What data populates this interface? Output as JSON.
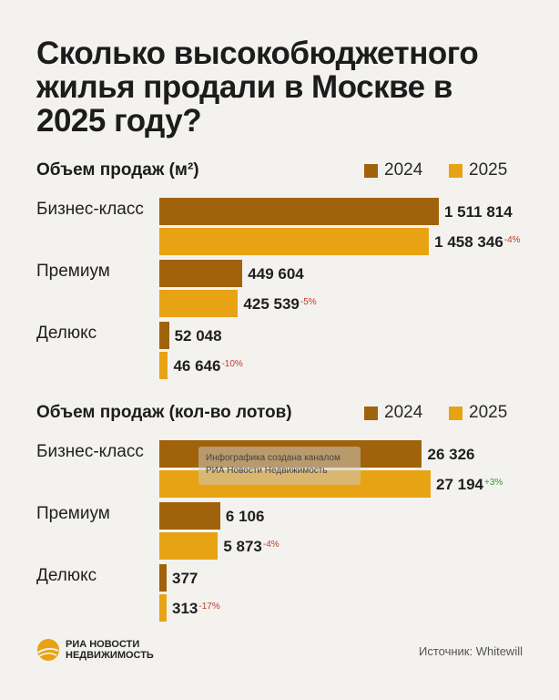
{
  "title": "Сколько высокобюджетного жилья продали в Москве в 2025 году?",
  "colors": {
    "y2024": "#a0620a",
    "y2025": "#e8a314",
    "negative": "#c23a2c",
    "positive": "#2e9a3a"
  },
  "legend": {
    "year_2024": "2024",
    "year_2025": "2025"
  },
  "chart_data": [
    {
      "type": "bar",
      "title": "Объем продаж (м²)",
      "categories": [
        "Бизнес-класс",
        "Премиум",
        "Делюкс"
      ],
      "series": [
        {
          "name": "2024",
          "values": [
            1511814,
            449604,
            52048
          ],
          "labels": [
            "1 511 814",
            "449 604",
            "52 048"
          ],
          "changes": [
            "",
            "",
            ""
          ]
        },
        {
          "name": "2025",
          "values": [
            1458346,
            425539,
            46646
          ],
          "labels": [
            "1 458 346",
            "425 539",
            "46 646"
          ],
          "changes": [
            "-4%",
            "-5%",
            "-10%"
          ]
        }
      ]
    },
    {
      "type": "bar",
      "title": "Объем продаж (кол-во лотов)",
      "categories": [
        "Бизнес-класс",
        "Премиум",
        "Делюкс"
      ],
      "series": [
        {
          "name": "2024",
          "values": [
            26326,
            6106,
            377
          ],
          "labels": [
            "26 326",
            "6 106",
            "377"
          ],
          "changes": [
            "",
            "",
            ""
          ]
        },
        {
          "name": "2025",
          "values": [
            27194,
            5873,
            313
          ],
          "labels": [
            "27 194",
            "5 873",
            "313"
          ],
          "changes": [
            "+3%",
            "-4%",
            "-17%"
          ]
        }
      ]
    }
  ],
  "watermark": {
    "line1": "Инфографика создана каналом",
    "line2": "РИА Новости Недвижимость"
  },
  "logo": {
    "line1": "РИА НОВОСТИ",
    "line2": "НЕДВИЖИМОСТЬ"
  },
  "source": "Источник: Whitewill"
}
